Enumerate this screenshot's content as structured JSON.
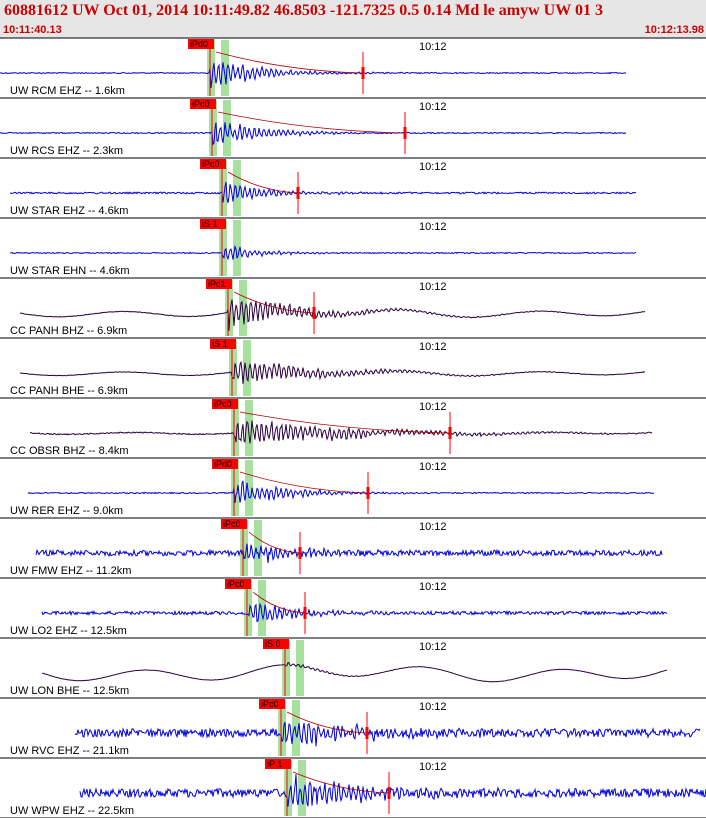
{
  "header": {
    "title": "60881612 UW Oct 01, 2014 10:11:49.82   46.8503 -121.7325  0.5 0.14 Md le amyw UW 01   3",
    "start_time": "10:11:40.13",
    "end_time": "10:12:13.98"
  },
  "colors": {
    "header_bg": "#e6e6e6",
    "header_text": "#cc0000",
    "trace_blue": "#0000dd",
    "trace_dark": "#2a0040",
    "pick_red": "#ff0000",
    "window_green": "#a8e0a0"
  },
  "chart_data": {
    "type": "line",
    "title": "60881612 UW Oct 01, 2014 10:11:49.82   46.8503 -121.7325  0.5 0.14 Md le amyw UW 01   3",
    "x_range": [
      "10:11:40.13",
      "10:12:13.98"
    ],
    "tick_label": "10:12",
    "traces": [
      {
        "label": "UW RCM EHZ -- 1.6km",
        "pick": "iPd0",
        "color": "blue",
        "start": 0,
        "end": 626,
        "arrival": 210,
        "coda": 363,
        "amp": 0.55,
        "noise": 0.02,
        "dec": 45,
        "low": 0
      },
      {
        "label": "UW RCS EHZ -- 2.3km",
        "pick": "iPc0",
        "color": "blue",
        "start": 0,
        "end": 626,
        "arrival": 212,
        "coda": 405,
        "amp": 0.5,
        "noise": 0.02,
        "dec": 45,
        "low": 0
      },
      {
        "label": "UW STAR EHZ -- 4.6km",
        "pick": "iPc0",
        "color": "blue",
        "start": 10,
        "end": 636,
        "arrival": 222,
        "coda": 298,
        "amp": 0.4,
        "noise": 0.03,
        "dec": 40,
        "low": 0
      },
      {
        "label": "UW STAR EHN -- 4.6km",
        "pick": "iS 1",
        "color": "blue",
        "start": 10,
        "end": 636,
        "arrival": 222,
        "coda": null,
        "amp": 0.3,
        "noise": 0.02,
        "dec": 35,
        "low": 0
      },
      {
        "label": "CC PANH BHZ -- 6.9km",
        "pick": "iPc1",
        "color": "dark",
        "start": 20,
        "end": 645,
        "arrival": 228,
        "coda": 314,
        "amp": 0.55,
        "noise": 0.01,
        "dec": 70,
        "low": 0.15
      },
      {
        "label": "CC PANH BHE -- 6.9km",
        "pick": "iS 1",
        "color": "dark",
        "start": 20,
        "end": 645,
        "arrival": 232,
        "coda": null,
        "amp": 0.45,
        "noise": 0.01,
        "dec": 80,
        "low": 0.1
      },
      {
        "label": "CC OBSR BHZ -- 8.4km",
        "pick": "iPc0",
        "color": "dark",
        "start": 30,
        "end": 652,
        "arrival": 234,
        "coda": 450,
        "amp": 0.5,
        "noise": 0.02,
        "dec": 110,
        "low": 0.05
      },
      {
        "label": "UW RER EHZ -- 9.0km",
        "pick": "iPd0",
        "color": "blue",
        "start": 28,
        "end": 654,
        "arrival": 234,
        "coda": 368,
        "amp": 0.5,
        "noise": 0.02,
        "dec": 50,
        "low": 0
      },
      {
        "label": "UW FMW EHZ -- 11.2km",
        "pick": "iPc0",
        "color": "blue",
        "start": 36,
        "end": 662,
        "arrival": 243,
        "coda": 300,
        "amp": 0.35,
        "noise": 0.1,
        "dec": 50,
        "low": 0
      },
      {
        "label": "UW LO2 EHZ -- 12.5km",
        "pick": "iPc0",
        "color": "blue",
        "start": 42,
        "end": 667,
        "arrival": 247,
        "coda": 305,
        "amp": 0.4,
        "noise": 0.06,
        "dec": 50,
        "low": 0
      },
      {
        "label": "UW LON BHE -- 12.5km",
        "pick": "iS 0",
        "color": "dark",
        "start": 42,
        "end": 667,
        "arrival": 285,
        "coda": null,
        "amp": 0.08,
        "noise": 0.005,
        "dec": 40,
        "low": 0.3
      },
      {
        "label": "UW RVC EHZ -- 21.1km",
        "pick": "iPc0",
        "color": "blue",
        "start": 75,
        "end": 700,
        "arrival": 281,
        "coda": 367,
        "amp": 0.5,
        "noise": 0.15,
        "dec": 70,
        "low": 0
      },
      {
        "label": "UW WPW EHZ -- 22.5km",
        "pick": "iP 1",
        "color": "blue",
        "start": 80,
        "end": 706,
        "arrival": 287,
        "coda": 389,
        "amp": 0.6,
        "noise": 0.15,
        "dec": 80,
        "low": 0
      }
    ]
  }
}
